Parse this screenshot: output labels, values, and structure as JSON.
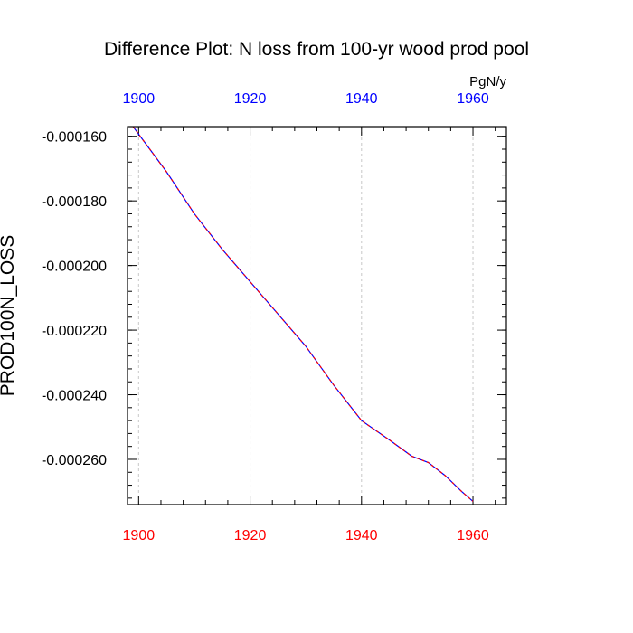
{
  "chart_data": {
    "type": "line",
    "title": "Difference Plot: N loss from 100-yr wood prod pool",
    "ylabel": "PROD100N_LOSS",
    "units": "PgN/y",
    "xlim": [
      1898,
      1966
    ],
    "ylim": [
      -0.000274,
      -0.000157
    ],
    "x_ticks": [
      1900,
      1920,
      1940,
      1960
    ],
    "x_tick_labels": [
      "1900",
      "1920",
      "1940",
      "1960"
    ],
    "y_ticks": [
      -0.00016,
      -0.00018,
      -0.0002,
      -0.00022,
      -0.00024,
      -0.00026
    ],
    "y_tick_labels": [
      "-0.000160",
      "-0.000180",
      "-0.000200",
      "-0.000220",
      "-0.000240",
      "-0.000260"
    ],
    "grid": "vertical dashed",
    "colors": {
      "top_axis_labels": "#0000ff",
      "bottom_axis_labels": "#ff0000",
      "series_main": "#0000ff",
      "series_dash": "#ff0000"
    },
    "series": [
      {
        "x": [
          1899,
          1905,
          1910,
          1915,
          1920,
          1925,
          1930,
          1935,
          1940,
          1945,
          1949,
          1952,
          1955,
          1958,
          1960
        ],
        "y": [
          -0.000157,
          -0.000171,
          -0.000184,
          -0.000195,
          -0.000205,
          -0.000215,
          -0.000225,
          -0.000237,
          -0.000248,
          -0.000254,
          -0.000259,
          -0.000261,
          -0.000265,
          -0.00027,
          -0.000273
        ]
      }
    ]
  }
}
